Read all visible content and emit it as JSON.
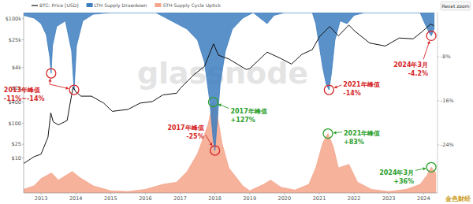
{
  "chart_data": {
    "type": "line",
    "xlim": [
      2012.5,
      2024.4
    ],
    "xticks": [
      2013,
      2014,
      2015,
      2016,
      2017,
      2018,
      2019,
      2020,
      2021,
      2022,
      2023,
      2024
    ],
    "ylim": [
      1,
      150000
    ],
    "log": "y",
    "yticks": [
      {
        "value": 10,
        "label": "$10"
      },
      {
        "value": 25,
        "label": "$25"
      },
      {
        "value": 100,
        "label": "$100"
      },
      {
        "value": 400,
        "label": "$400"
      },
      {
        "value": 1000,
        "label": "$1k"
      },
      {
        "value": 4000,
        "label": "$4k"
      },
      {
        "value": 25000,
        "label": "$25k"
      },
      {
        "value": 100000,
        "label": "$100k"
      }
    ],
    "y2lim": [
      -32.7,
      0
    ],
    "y2ticks": [
      {
        "value": -8,
        "label": "-8%"
      },
      {
        "value": -16,
        "label": "-16%"
      },
      {
        "value": -24,
        "label": "-24%"
      }
    ],
    "y3lim": [
      0,
      252
    ],
    "grid": false,
    "legend": "top",
    "series": [
      {
        "name": "BTC: Price [USD]",
        "type": "line",
        "color": "#111111",
        "x": [
          2012.5,
          2012.8,
          2013.0,
          2013.2,
          2013.28,
          2013.35,
          2013.5,
          2013.75,
          2013.92,
          2014.0,
          2014.15,
          2014.45,
          2014.8,
          2015.05,
          2015.5,
          2015.85,
          2016.2,
          2016.5,
          2016.9,
          2017.0,
          2017.4,
          2017.7,
          2017.96,
          2018.1,
          2018.4,
          2018.9,
          2019.0,
          2019.5,
          2019.9,
          2020.2,
          2020.5,
          2020.8,
          2021.0,
          2021.3,
          2021.55,
          2021.85,
          2022.0,
          2022.45,
          2022.9,
          2023.3,
          2023.7,
          2023.95,
          2024.2,
          2024.3
        ],
        "values": [
          7,
          11,
          13,
          40,
          200,
          110,
          90,
          120,
          1100,
          800,
          600,
          600,
          380,
          220,
          250,
          380,
          420,
          650,
          730,
          1000,
          2500,
          4300,
          19000,
          9000,
          7000,
          3500,
          3700,
          11000,
          7200,
          5000,
          9500,
          13000,
          30000,
          60000,
          32000,
          66000,
          46000,
          20000,
          16500,
          28000,
          26500,
          42000,
          70000,
          63000
        ]
      },
      {
        "name": "LTH Supply Drawdown",
        "type": "area",
        "axis": "y2",
        "color": "#3d7ebf",
        "x": [
          2012.5,
          2012.8,
          2013.0,
          2013.15,
          2013.25,
          2013.29,
          2013.33,
          2013.45,
          2013.7,
          2013.88,
          2013.95,
          2014.02,
          2014.2,
          2014.5,
          2015.0,
          2016.3,
          2016.6,
          2016.9,
          2017.2,
          2017.5,
          2017.7,
          2017.85,
          2017.95,
          2018.0,
          2018.05,
          2018.15,
          2018.3,
          2018.5,
          2018.8,
          2019.1,
          2019.4,
          2019.5,
          2019.7,
          2020.0,
          2020.8,
          2020.9,
          2021.0,
          2021.1,
          2021.2,
          2021.28,
          2021.35,
          2021.45,
          2021.6,
          2021.8,
          2022.0,
          2022.3,
          2023.9,
          2024.0,
          2024.15,
          2024.22,
          2024.3
        ],
        "values": [
          -0.5,
          -1,
          -2,
          -4,
          -8,
          -11,
          -6,
          -2.5,
          -1.5,
          -7,
          -14,
          -6,
          -1.5,
          -0.3,
          0,
          0,
          -1,
          -2,
          -3,
          -5,
          -9,
          -16,
          -23,
          -25,
          -21,
          -13,
          -7,
          -3,
          -1,
          0,
          -1.5,
          -2,
          -0.5,
          0,
          0,
          -2,
          -6,
          -10,
          -13,
          -14,
          -11,
          -5,
          -1.5,
          -2,
          -0.5,
          0,
          0,
          -1.5,
          -3.5,
          -4.2,
          -3
        ]
      },
      {
        "name": "STH Supply Cycle Uptick",
        "type": "area",
        "axis": "y3",
        "color": "#f4a58a",
        "x": [
          2012.5,
          2012.8,
          2013.0,
          2013.3,
          2013.5,
          2013.9,
          2014.1,
          2014.5,
          2015.0,
          2015.5,
          2016.0,
          2016.5,
          2016.9,
          2017.2,
          2017.5,
          2017.8,
          2017.95,
          2018.05,
          2018.2,
          2018.4,
          2018.8,
          2019.0,
          2019.4,
          2019.6,
          2019.9,
          2020.3,
          2020.7,
          2020.9,
          2021.1,
          2021.25,
          2021.4,
          2021.55,
          2021.85,
          2022.1,
          2022.5,
          2023.0,
          2023.5,
          2023.9,
          2024.1,
          2024.22,
          2024.35
        ],
        "values": [
          5,
          10,
          20,
          28,
          18,
          30,
          22,
          10,
          3,
          2,
          5,
          12,
          15,
          30,
          55,
          95,
          127,
          115,
          70,
          35,
          10,
          3,
          12,
          18,
          8,
          4,
          12,
          35,
          70,
          83,
          65,
          35,
          40,
          15,
          5,
          2,
          5,
          12,
          25,
          36,
          28
        ]
      }
    ],
    "annotations": [
      {
        "lines": [
          "2013年峰值",
          "-11%~-14%"
        ],
        "color": "#d62728",
        "axis": "y2",
        "points": [
          [
            2013.29,
            -11
          ],
          [
            2013.95,
            -14
          ]
        ]
      },
      {
        "lines": [
          "2017年峰值",
          "-25%"
        ],
        "color": "#d62728",
        "axis": "y2",
        "points": [
          [
            2018.0,
            -25
          ]
        ]
      },
      {
        "lines": [
          "2017年峰值",
          "+127%"
        ],
        "color": "#2ca02c",
        "axis": "y3",
        "points": [
          [
            2017.95,
            127
          ]
        ]
      },
      {
        "lines": [
          "2021年峰值",
          "-14%"
        ],
        "color": "#d62728",
        "axis": "y2",
        "points": [
          [
            2021.28,
            -14
          ]
        ]
      },
      {
        "lines": [
          "2021年峰值",
          "+83%"
        ],
        "color": "#2ca02c",
        "axis": "y3",
        "points": [
          [
            2021.25,
            83
          ]
        ]
      },
      {
        "lines": [
          "2024年3月",
          "-4.2%"
        ],
        "color": "#d62728",
        "axis": "y2",
        "points": [
          [
            2024.22,
            -4.2
          ]
        ]
      },
      {
        "lines": [
          "2024年3月",
          "+36%"
        ],
        "color": "#2ca02c",
        "axis": "y3",
        "points": [
          [
            2024.22,
            36
          ]
        ]
      }
    ],
    "watermark": "glassnode",
    "button": "Reset zoom",
    "source": "金色财经"
  }
}
